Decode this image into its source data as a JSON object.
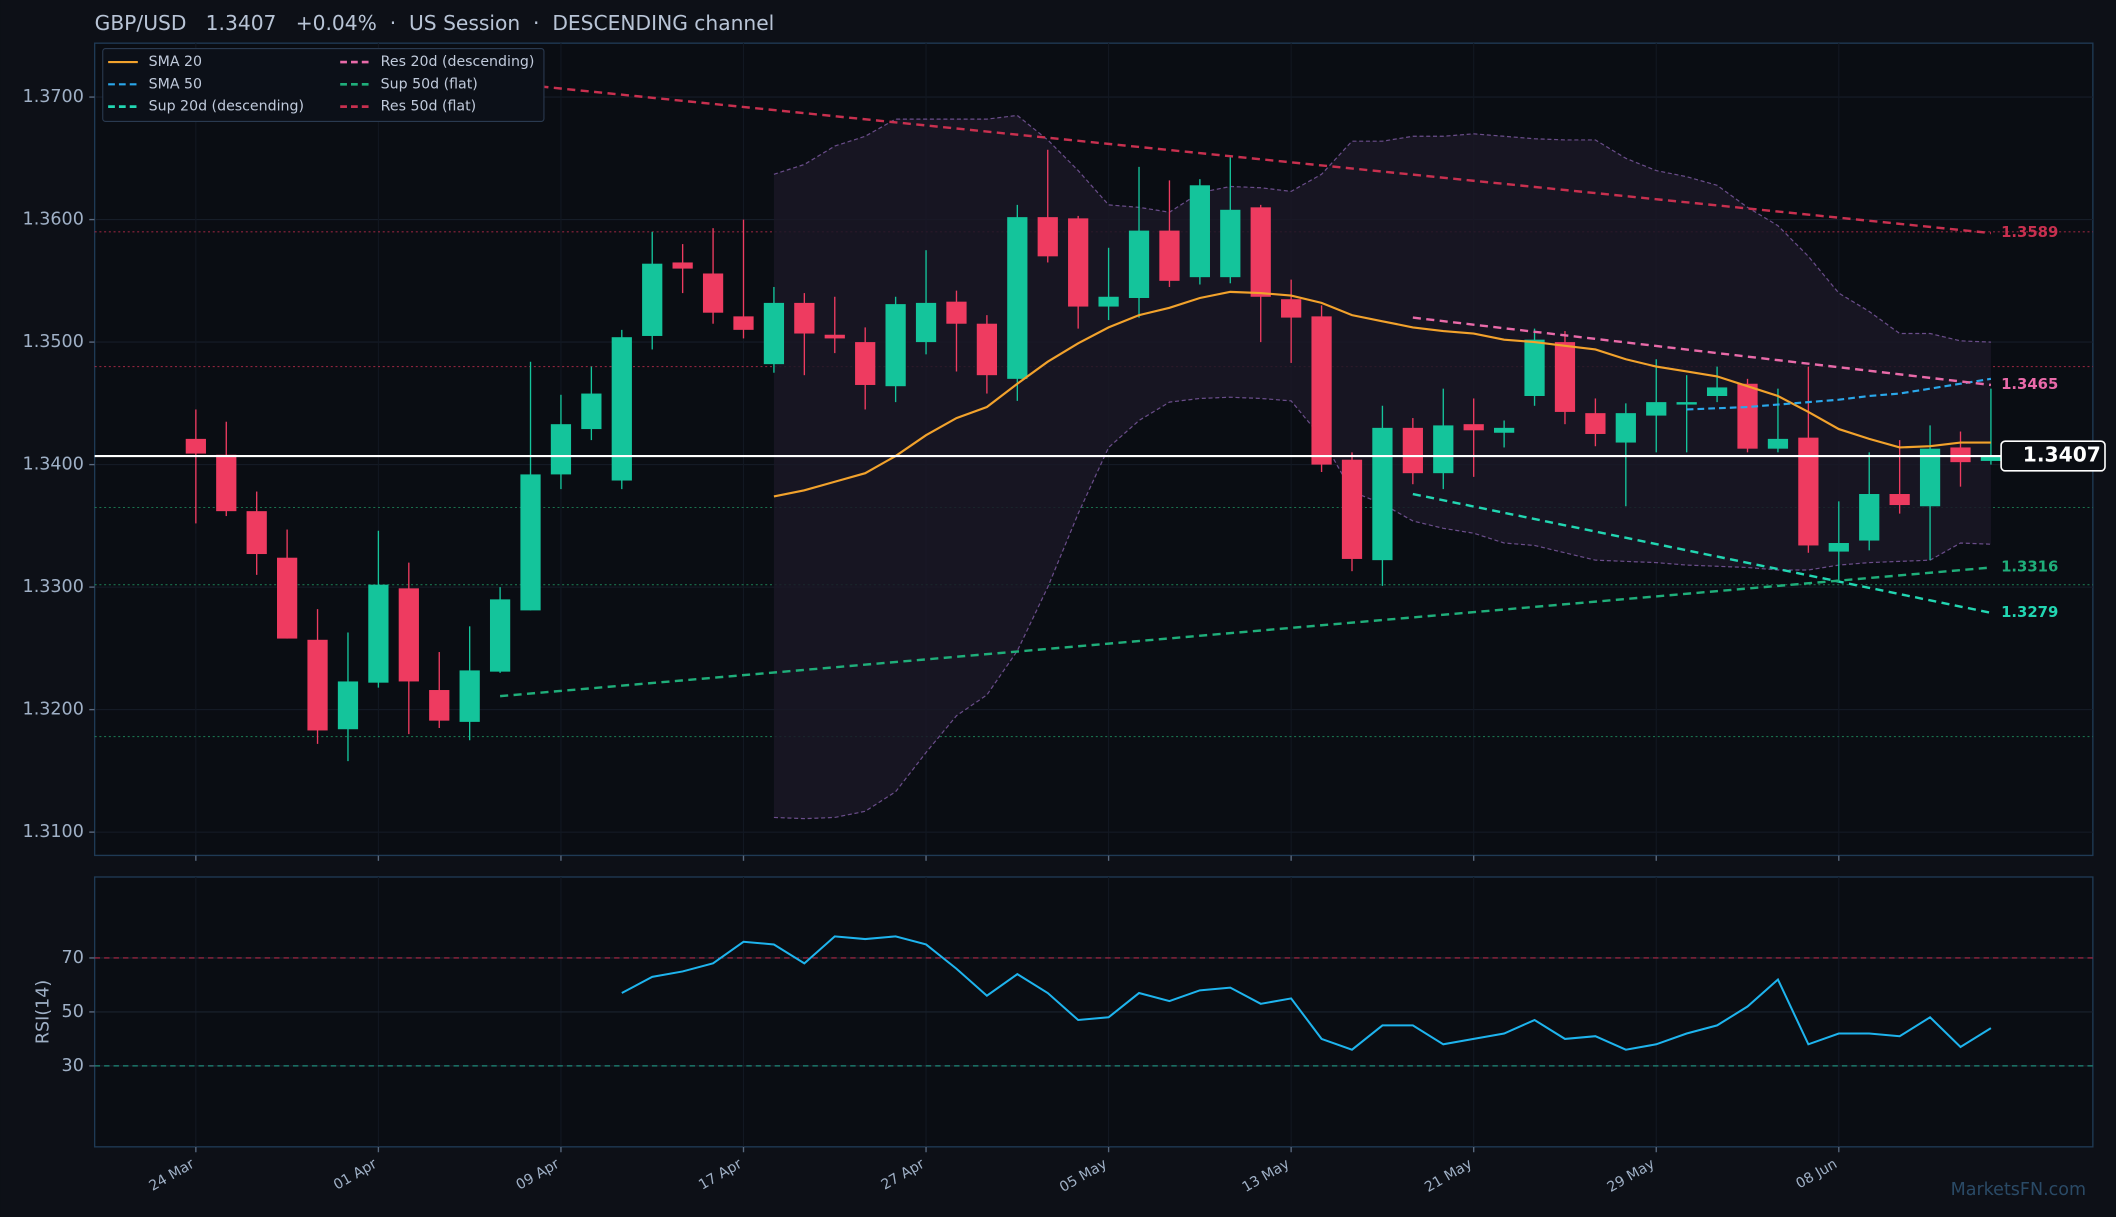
{
  "chart_data": [
    {
      "type": "candlestick",
      "title": "GBP/USD   1.3407   +0.04%  ·  US Session  ·  DESCENDING channel",
      "categories": [
        "24 Mar",
        null,
        null,
        null,
        null,
        null,
        "01 Apr",
        null,
        null,
        null,
        null,
        null,
        "09 Apr",
        null,
        null,
        null,
        null,
        null,
        "17 Apr",
        null,
        null,
        null,
        null,
        null,
        "27 Apr",
        null,
        null,
        null,
        null,
        null,
        "05 May",
        null,
        null,
        null,
        null,
        null,
        "13 May",
        null,
        null,
        null,
        null,
        null,
        "21 May",
        null,
        null,
        null,
        null,
        null,
        "29 May",
        null,
        null,
        null,
        null,
        null,
        "08 Jun",
        null,
        null,
        null,
        null,
        null
      ],
      "open": [
        1.3421,
        1.3408,
        1.3362,
        1.3324,
        1.3257,
        1.3184,
        1.3222,
        1.3299,
        1.3216,
        1.319,
        1.3231,
        1.3281,
        1.3392,
        1.3429,
        1.3387,
        1.3505,
        1.3565,
        1.3556,
        1.3521,
        1.3482,
        1.3532,
        1.3506,
        1.35,
        1.3464,
        1.35,
        1.3533,
        1.3515,
        1.347,
        1.3602,
        1.3601,
        1.3529,
        1.3536,
        1.3591,
        1.3553,
        1.3553,
        1.361,
        1.3535,
        1.3521,
        1.3404,
        1.3322,
        1.343,
        1.3393,
        1.3433,
        1.3426,
        1.3456,
        1.35,
        1.3442,
        1.3418,
        1.344,
        1.3449,
        1.3456,
        1.3466,
        1.3413,
        1.3422,
        1.3329,
        1.3338,
        1.3376,
        1.3366,
        1.3414,
        1.3403
      ],
      "high": [
        1.3445,
        1.3435,
        1.3378,
        1.3347,
        1.3282,
        1.3263,
        1.3346,
        1.332,
        1.3247,
        1.3268,
        1.33,
        1.3484,
        1.3457,
        1.348,
        1.351,
        1.359,
        1.358,
        1.3593,
        1.36,
        1.3545,
        1.354,
        1.3537,
        1.3512,
        1.3537,
        1.3575,
        1.3542,
        1.3522,
        1.3612,
        1.3657,
        1.3603,
        1.3577,
        1.3643,
        1.3632,
        1.3633,
        1.3651,
        1.3612,
        1.3551,
        1.353,
        1.341,
        1.3448,
        1.3438,
        1.3462,
        1.3454,
        1.3436,
        1.3511,
        1.3509,
        1.3454,
        1.345,
        1.3486,
        1.3473,
        1.348,
        1.347,
        1.3462,
        1.348,
        1.337,
        1.341,
        1.342,
        1.3432,
        1.3427,
        1.3462
      ],
      "low": [
        1.3352,
        1.3358,
        1.331,
        1.3258,
        1.3172,
        1.3158,
        1.3218,
        1.318,
        1.3185,
        1.3175,
        1.323,
        1.3281,
        1.338,
        1.342,
        1.338,
        1.3494,
        1.354,
        1.3515,
        1.3503,
        1.3475,
        1.3473,
        1.3491,
        1.3445,
        1.3451,
        1.349,
        1.3476,
        1.3458,
        1.3452,
        1.3565,
        1.3511,
        1.3518,
        1.352,
        1.3545,
        1.3547,
        1.3548,
        1.35,
        1.3483,
        1.3394,
        1.3313,
        1.3301,
        1.3384,
        1.338,
        1.339,
        1.3414,
        1.3448,
        1.3433,
        1.3415,
        1.3366,
        1.341,
        1.341,
        1.3451,
        1.341,
        1.341,
        1.3328,
        1.3305,
        1.333,
        1.336,
        1.3322,
        1.3382,
        1.34
      ],
      "close": [
        1.3409,
        1.3362,
        1.3327,
        1.3258,
        1.3183,
        1.3223,
        1.3302,
        1.3223,
        1.3191,
        1.3232,
        1.329,
        1.3392,
        1.3433,
        1.3458,
        1.3504,
        1.3564,
        1.356,
        1.3524,
        1.351,
        1.3532,
        1.3507,
        1.3503,
        1.3465,
        1.3531,
        1.3532,
        1.3515,
        1.3473,
        1.3602,
        1.357,
        1.3529,
        1.3537,
        1.3591,
        1.355,
        1.3628,
        1.3608,
        1.3537,
        1.352,
        1.34,
        1.3323,
        1.343,
        1.3393,
        1.3432,
        1.3428,
        1.343,
        1.3502,
        1.3443,
        1.3425,
        1.3442,
        1.3451,
        1.3451,
        1.3463,
        1.3413,
        1.3421,
        1.3334,
        1.3336,
        1.3376,
        1.3367,
        1.3413,
        1.3402,
        1.3407
      ],
      "up_color": "#14c49b",
      "down_color": "#ee3b60",
      "ylim": [
        1.3081,
        1.3744
      ],
      "yticks": [
        {
          "value": 1.31,
          "label": "1.3100"
        },
        {
          "value": 1.32,
          "label": "1.3200"
        },
        {
          "value": 1.33,
          "label": "1.3300"
        },
        {
          "value": 1.34,
          "label": "1.3400"
        },
        {
          "value": 1.35,
          "label": "1.3500"
        },
        {
          "value": 1.36,
          "label": "1.3600"
        },
        {
          "value": 1.37,
          "label": "1.3700"
        }
      ],
      "grid": true,
      "legend": "upper left",
      "bollinger": {
        "color": "#6a4d8a",
        "upper": [
          null,
          null,
          null,
          null,
          null,
          null,
          null,
          null,
          null,
          null,
          null,
          null,
          null,
          null,
          null,
          null,
          null,
          null,
          null,
          1.3637,
          1.3645,
          1.366,
          1.3668,
          1.3682,
          1.3682,
          1.3682,
          1.3682,
          1.3685,
          1.3665,
          1.364,
          1.3612,
          1.361,
          1.3606,
          1.3622,
          1.3627,
          1.3626,
          1.3623,
          1.3637,
          1.3664,
          1.3664,
          1.3668,
          1.3668,
          1.367,
          1.3668,
          1.3666,
          1.3665,
          1.3665,
          1.365,
          1.364,
          1.3635,
          1.3628,
          1.361,
          1.3595,
          1.357,
          1.354,
          1.3525,
          1.3507,
          1.3507,
          1.3501,
          1.35
        ],
        "lower": [
          null,
          null,
          null,
          null,
          null,
          null,
          null,
          null,
          null,
          null,
          null,
          null,
          null,
          null,
          null,
          null,
          null,
          null,
          null,
          1.3112,
          1.3111,
          1.3112,
          1.3117,
          1.3133,
          1.3165,
          1.3195,
          1.3212,
          1.3248,
          1.33,
          1.336,
          1.3414,
          1.3436,
          1.3451,
          1.3454,
          1.3455,
          1.3454,
          1.3452,
          1.3422,
          1.3378,
          1.3368,
          1.3354,
          1.3348,
          1.3344,
          1.3336,
          1.3334,
          1.3328,
          1.3322,
          1.3321,
          1.332,
          1.3318,
          1.3317,
          1.3316,
          1.3314,
          1.3314,
          1.3318,
          1.332,
          1.3321,
          1.3322,
          1.3336,
          1.3335
        ]
      },
      "levels": [
        {
          "value": 1.359,
          "color": "#b02a48"
        },
        {
          "value": 1.348,
          "color": "#b02a48"
        },
        {
          "value": 1.3365,
          "color": "#1f8a5c"
        },
        {
          "value": 1.3302,
          "color": "#1f8a5c"
        },
        {
          "value": 1.3178,
          "color": "#1f8a5c"
        }
      ],
      "last_price": {
        "value": 1.3407,
        "color": "#ffffff"
      },
      "series": [
        {
          "name": "SMA 20",
          "color": "#f2a22c",
          "dash": false,
          "values": [
            null,
            null,
            null,
            null,
            null,
            null,
            null,
            null,
            null,
            null,
            null,
            null,
            null,
            null,
            null,
            null,
            null,
            null,
            null,
            1.3374,
            1.3379,
            1.3386,
            1.3393,
            1.3407,
            1.3424,
            1.3438,
            1.3447,
            1.3466,
            1.3484,
            1.3499,
            1.3512,
            1.3522,
            1.3528,
            1.3536,
            1.3541,
            1.354,
            1.3538,
            1.3532,
            1.3522,
            1.3517,
            1.3512,
            1.3509,
            1.3507,
            1.3502,
            1.35,
            1.3497,
            1.3494,
            1.3486,
            1.348,
            1.3476,
            1.3472,
            1.3464,
            1.3456,
            1.3443,
            1.3429,
            1.3421,
            1.3414,
            1.3415,
            1.3418,
            1.3418
          ]
        },
        {
          "name": "SMA 50",
          "color": "#2aa7ea",
          "dash": true,
          "values": [
            null,
            null,
            null,
            null,
            null,
            null,
            null,
            null,
            null,
            null,
            null,
            null,
            null,
            null,
            null,
            null,
            null,
            null,
            null,
            null,
            null,
            null,
            null,
            null,
            null,
            null,
            null,
            null,
            null,
            null,
            null,
            null,
            null,
            null,
            null,
            null,
            null,
            null,
            null,
            null,
            null,
            null,
            null,
            null,
            null,
            null,
            null,
            null,
            null,
            1.3445,
            1.3446,
            1.3447,
            1.3449,
            1.3451,
            1.3453,
            1.3456,
            1.3458,
            1.3462,
            1.3466,
            1.347
          ]
        },
        {
          "name": "Sup 20d (descending)",
          "color": "#22d6b2",
          "dash": true,
          "x": [
            40,
            59
          ],
          "values": [
            1.3376,
            1.3279
          ]
        },
        {
          "name": "Res 20d (descending)",
          "color": "#e96aa9",
          "dash": true,
          "x": [
            40,
            59
          ],
          "values": [
            1.352,
            1.3465
          ]
        },
        {
          "name": "Sup 50d (flat)",
          "color": "#1fae7a",
          "dash": true,
          "x": [
            10,
            59
          ],
          "values": [
            1.3211,
            1.3316
          ]
        },
        {
          "name": "Res 50d (flat)",
          "color": "#c8304f",
          "dash": true,
          "x": [
            10,
            59
          ],
          "values": [
            1.3712,
            1.3589
          ]
        }
      ]
    },
    {
      "type": "line",
      "ylabel": "RSI(14)",
      "ylim": [
        0,
        100
      ],
      "yticks": [
        30,
        50,
        70
      ],
      "levels": [
        {
          "value": 70,
          "color": "#b02a48"
        },
        {
          "value": 30,
          "color": "#1f8a7a"
        }
      ],
      "series": [
        {
          "color": "#1eb4ee",
          "values": [
            null,
            null,
            null,
            null,
            null,
            null,
            null,
            null,
            null,
            null,
            null,
            null,
            null,
            null,
            57,
            63,
            65,
            68,
            76,
            75,
            68,
            78,
            77,
            78,
            75,
            66,
            56,
            64,
            57,
            47,
            48,
            57,
            54,
            58,
            59,
            53,
            55,
            40,
            36,
            45,
            45,
            38,
            40,
            42,
            47,
            40,
            41,
            36,
            38,
            42,
            45,
            52,
            62,
            38,
            42,
            42,
            41,
            48,
            37,
            44
          ]
        }
      ]
    }
  ],
  "watermark": "MarketsFN.com"
}
